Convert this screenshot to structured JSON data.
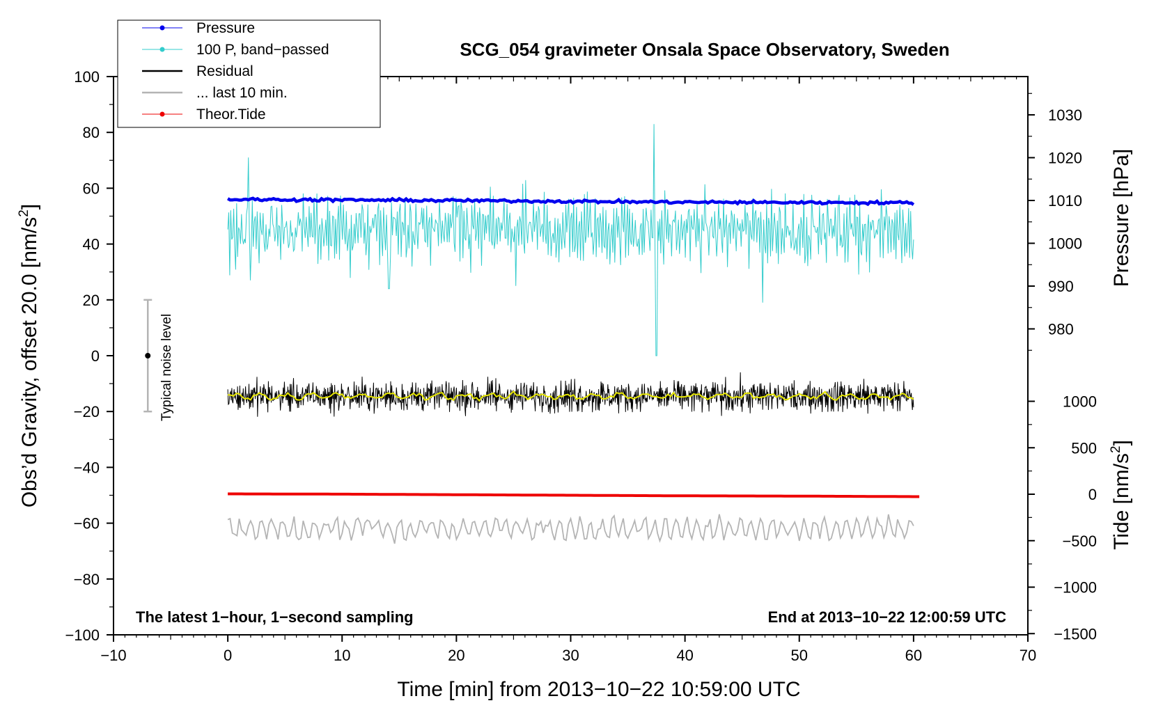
{
  "chart_data": {
    "type": "line",
    "title": "SCG_054 gravimeter Onsala Space Observatory, Sweden",
    "xlabel": "Time [min] from 2013−10−22 10:59:00 UTC",
    "ylabel_left_main": "Obs’d Gravity, offset 20.0 [nm/s",
    "ylabel_left_sup": "2",
    "ylabel_left_end": "]",
    "ylabel_right_top": "Pressure [hPa]",
    "ylabel_right_bottom_main": "Tide [nm/s",
    "ylabel_right_bottom_sup": "2",
    "ylabel_right_bottom_end": "]",
    "xlim": [
      -10,
      70
    ],
    "ylim": [
      -100,
      100
    ],
    "x_ticks": [
      -10,
      0,
      10,
      20,
      30,
      40,
      50,
      60,
      70
    ],
    "x_tick_labels": [
      "−10",
      "0",
      "10",
      "20",
      "30",
      "40",
      "50",
      "60",
      "70"
    ],
    "y_ticks": [
      -100,
      -80,
      -60,
      -40,
      -20,
      0,
      20,
      40,
      60,
      80,
      100
    ],
    "y_tick_labels": [
      "−100",
      "−80",
      "−60",
      "−40",
      "−20",
      "0",
      "20",
      "40",
      "60",
      "80",
      "100"
    ],
    "pressure_ticks": [
      980,
      990,
      1000,
      1010,
      1020,
      1030
    ],
    "pressure_tick_labels": [
      "980",
      "990",
      "1000",
      "1010",
      "1020",
      "1030"
    ],
    "tide_ticks": [
      -1500,
      -1000,
      -500,
      0,
      500,
      1000
    ],
    "tide_tick_labels": [
      "−1500",
      "−1000",
      "−500",
      "0",
      "500",
      "1000"
    ],
    "legend_position": "top-left",
    "legend": [
      {
        "label": "Pressure",
        "color": "#0000ee",
        "marker": true
      },
      {
        "label": "100 P, band−passed",
        "color": "#33cccc",
        "marker": true
      },
      {
        "label": "Residual",
        "color": "#000000",
        "marker": false
      },
      {
        "label": "... last 10 min.",
        "color": "#b4b4b4",
        "marker": false
      },
      {
        "label": "Theor.Tide",
        "color": "#ee0000",
        "marker": true
      }
    ],
    "annotations": {
      "bottom_left": "The latest 1−hour, 1−second sampling",
      "bottom_right": "End at 2013−10−22 12:00:59 UTC",
      "noise_label": "Typical noise level"
    },
    "noise_bar": {
      "x": -7,
      "center": 0,
      "low": -20,
      "high": 20
    },
    "series": [
      {
        "name": "Pressure",
        "color": "#0000ee",
        "axis": "left",
        "x": [
          0,
          10,
          20,
          30,
          40,
          50,
          60
        ],
        "values": [
          56.0,
          55.8,
          55.6,
          55.3,
          55.0,
          54.9,
          54.8
        ]
      },
      {
        "name": "100 P, band−passed",
        "color": "#33cccc",
        "axis": "left",
        "x_range": [
          0,
          60
        ],
        "center": 45,
        "spikes": [
          {
            "x": 1.8,
            "value": 71
          },
          {
            "x": 2.0,
            "value": 27
          },
          {
            "x": 14.1,
            "value": 24
          },
          {
            "x": 25.2,
            "value": 25
          },
          {
            "x": 37.3,
            "value": 83
          },
          {
            "x": 37.5,
            "value": 0
          },
          {
            "x": 46.8,
            "value": 19
          }
        ]
      },
      {
        "name": "Residual",
        "color": "#000000",
        "axis": "left",
        "x_range": [
          0,
          60
        ],
        "center": -14.5,
        "range": [
          -23,
          -5
        ]
      },
      {
        "name": "Residual smoothed",
        "color": "#e6e600",
        "axis": "left",
        "x_range": [
          0,
          60
        ],
        "center": -14.5
      },
      {
        "name": "... last 10 min.",
        "color": "#b4b4b4",
        "axis": "left",
        "x_range": [
          0,
          60
        ],
        "center": -62,
        "range": [
          -69,
          -55
        ]
      },
      {
        "name": "Theor.Tide",
        "color": "#ee0000",
        "axis": "left",
        "x": [
          0,
          10,
          20,
          30,
          40,
          50,
          60.5
        ],
        "values": [
          -49.5,
          -49.6,
          -49.8,
          -50.0,
          -50.2,
          -50.3,
          -50.5
        ]
      }
    ]
  }
}
